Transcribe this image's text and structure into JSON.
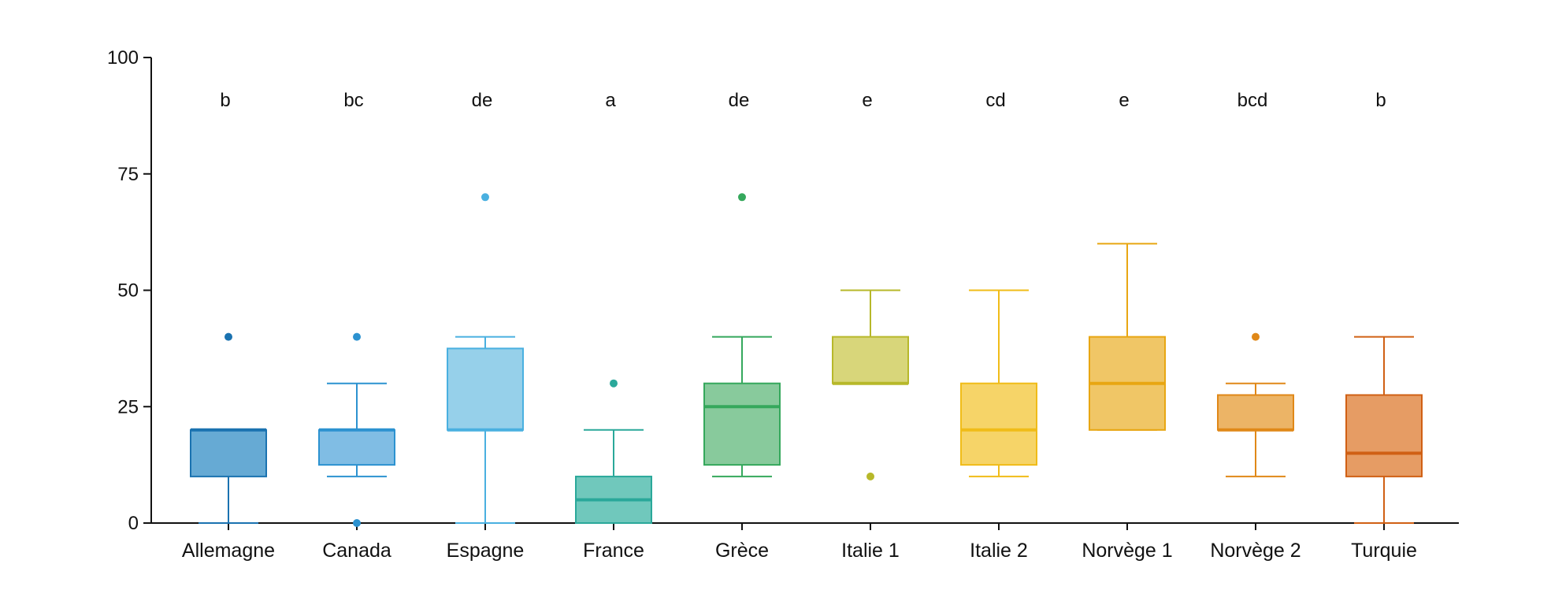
{
  "chart_data": {
    "type": "box",
    "title": "",
    "xlabel": "",
    "ylabel": "",
    "ylim": [
      0,
      100
    ],
    "yticks": [
      0,
      25,
      50,
      75,
      100
    ],
    "grid": false,
    "categories": [
      "Allemagne",
      "Canada",
      "Espagne",
      "France",
      "Grèce",
      "Italie 1",
      "Italie 2",
      "Norvège 1",
      "Norvège 2",
      "Turquie"
    ],
    "significance_letters": [
      "b",
      "bc",
      "de",
      "a",
      "de",
      "e",
      "cd",
      "e",
      "bcd",
      "b"
    ],
    "boxes": [
      {
        "whisker_low": 0,
        "q1": 10,
        "median": 20,
        "q3": 20,
        "whisker_high": 20,
        "outliers": [
          40
        ]
      },
      {
        "whisker_low": 10,
        "q1": 12.5,
        "median": 20,
        "q3": 20,
        "whisker_high": 30,
        "outliers": [
          0,
          40
        ]
      },
      {
        "whisker_low": 0,
        "q1": 20,
        "median": 20,
        "q3": 37.5,
        "whisker_high": 40,
        "outliers": [
          70
        ]
      },
      {
        "whisker_low": 0,
        "q1": 0,
        "median": 5,
        "q3": 10,
        "whisker_high": 20,
        "outliers": [
          30
        ]
      },
      {
        "whisker_low": 10,
        "q1": 12.5,
        "median": 25,
        "q3": 30,
        "whisker_high": 40,
        "outliers": [
          70
        ]
      },
      {
        "whisker_low": 30,
        "q1": 30,
        "median": 30,
        "q3": 40,
        "whisker_high": 50,
        "outliers": [
          10
        ]
      },
      {
        "whisker_low": 10,
        "q1": 12.5,
        "median": 20,
        "q3": 30,
        "whisker_high": 50,
        "outliers": []
      },
      {
        "whisker_low": 20,
        "q1": 20,
        "median": 30,
        "q3": 40,
        "whisker_high": 60,
        "outliers": []
      },
      {
        "whisker_low": 10,
        "q1": 20,
        "median": 20,
        "q3": 27.5,
        "whisker_high": 30,
        "outliers": [
          40
        ]
      },
      {
        "whisker_low": 0,
        "q1": 10,
        "median": 15,
        "q3": 27.5,
        "whisker_high": 40,
        "outliers": []
      }
    ],
    "colors": {
      "line": [
        "#1a72b0",
        "#2c92d0",
        "#4ab0e0",
        "#2aa89a",
        "#35a85c",
        "#b7b82a",
        "#f0bc18",
        "#e8a612",
        "#e08818",
        "#d06014"
      ],
      "fill": [
        "#66aad4",
        "#80bde4",
        "#96d0ea",
        "#70c8bc",
        "#88ca9c",
        "#d8d67a",
        "#f6d468",
        "#f0c666",
        "#ecb466",
        "#e69c64"
      ]
    }
  }
}
